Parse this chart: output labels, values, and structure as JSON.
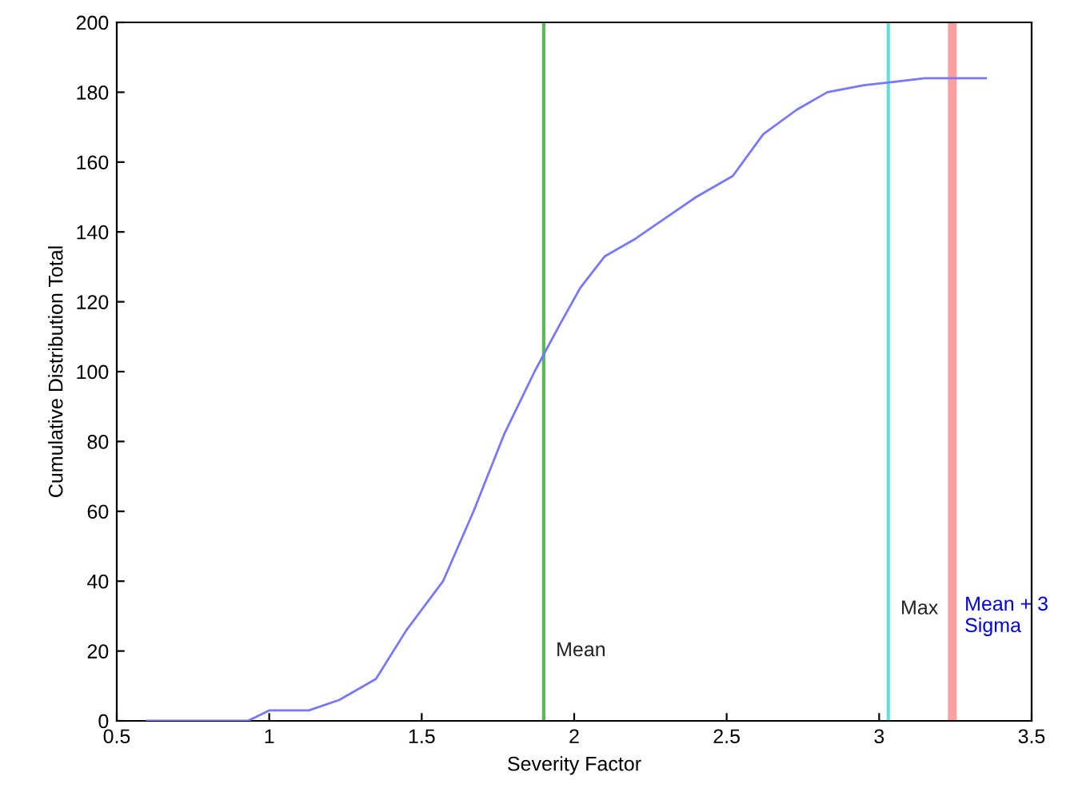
{
  "chart_data": {
    "type": "line",
    "xlabel": "Severity Factor",
    "ylabel": "Cumulative Distribution Total",
    "series": [
      {
        "color": "#7777ff",
        "x": [
          0.6,
          0.93,
          1.0,
          1.13,
          1.23,
          1.35,
          1.45,
          1.57,
          1.67,
          1.77,
          1.87,
          1.95,
          2.02,
          2.1,
          2.2,
          2.3,
          2.4,
          2.52,
          2.62,
          2.73,
          2.83,
          2.95,
          3.05,
          3.15,
          3.35
        ],
        "values": [
          0,
          0,
          3,
          3,
          6,
          12,
          26,
          40,
          60,
          82,
          100,
          113,
          124,
          133,
          138,
          144,
          150,
          156,
          168,
          175,
          180,
          182,
          183,
          184,
          184
        ]
      }
    ],
    "xlim": [
      0.5,
      3.5
    ],
    "ylim": [
      0,
      200
    ],
    "xticks": [
      0.5,
      1,
      1.5,
      2,
      2.5,
      3,
      3.5
    ],
    "yticks": [
      0,
      20,
      40,
      60,
      80,
      100,
      120,
      140,
      160,
      180,
      200
    ],
    "ref_lines": [
      {
        "axis": "x",
        "value": 1.9,
        "label": "Mean",
        "color": "#55bb55"
      },
      {
        "axis": "x",
        "value": 3.03,
        "label": "Max",
        "color": "#66dddd"
      },
      {
        "axis": "x",
        "value": 3.24,
        "label": "Mean + 3\nSigma",
        "color": "#ffa0a0"
      }
    ],
    "grid": false,
    "legend": false,
    "marker": "none",
    "line_style": "solid"
  }
}
